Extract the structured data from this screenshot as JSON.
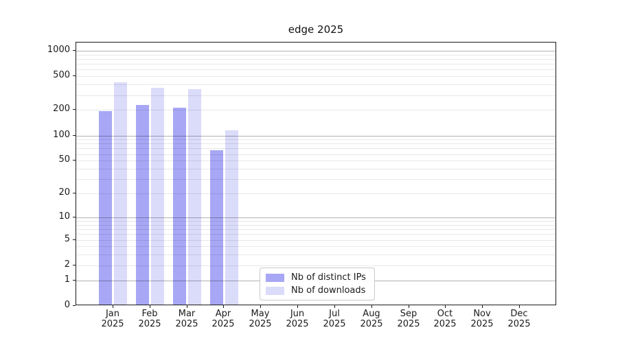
{
  "chart_data": {
    "type": "bar",
    "title": "edge 2025",
    "scale": "log1p",
    "xlabel": "",
    "ylabel": "",
    "ylim": [
      0,
      1000
    ],
    "y_ticks": [
      0,
      1,
      2,
      5,
      10,
      20,
      50,
      100,
      200,
      500,
      1000
    ],
    "grid": true,
    "legend_position": "inside bottom center-left",
    "months": [
      "Jan",
      "Feb",
      "Mar",
      "Apr",
      "May",
      "Jun",
      "Jul",
      "Aug",
      "Sep",
      "Oct",
      "Nov",
      "Dec"
    ],
    "year_label": "2025",
    "categories": [
      "Jan 2025",
      "Feb 2025",
      "Mar 2025",
      "Apr 2025",
      "May 2025",
      "Jun 2025",
      "Jul 2025",
      "Aug 2025",
      "Sep 2025",
      "Oct 2025",
      "Nov 2025",
      "Dec 2025"
    ],
    "series": [
      {
        "name": "Nb of distinct IPs",
        "color": "#a7a7f5",
        "values": [
          195,
          230,
          215,
          67,
          0,
          0,
          0,
          0,
          0,
          0,
          0,
          0
        ]
      },
      {
        "name": "Nb of downloads",
        "color": "#dbdbfa",
        "values": [
          425,
          368,
          356,
          115,
          0,
          0,
          0,
          0,
          0,
          0,
          0,
          0
        ]
      }
    ],
    "colors": {
      "major_grid": "rgba(0,0,0,0.30)",
      "minor_grid": "rgba(0,0,0,0.09)",
      "axis": "#1a1a1a",
      "text": "#1a1a1a",
      "legend_border": "#c8c8c8"
    }
  }
}
